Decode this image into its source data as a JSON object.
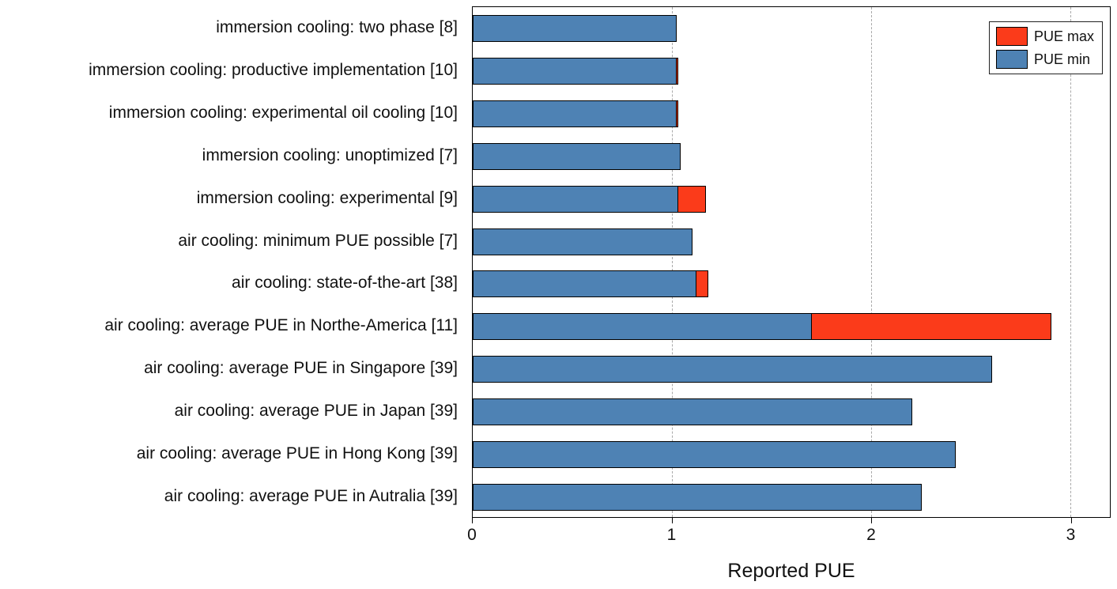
{
  "chart_data": {
    "type": "bar",
    "orientation": "horizontal",
    "title": "",
    "xlabel": "Reported PUE",
    "ylabel": "",
    "xlim": [
      0,
      3.2
    ],
    "xticks": [
      0,
      1,
      2,
      3
    ],
    "grid": "vertical-dashed",
    "legend_position": "upper right",
    "categories": [
      "immersion cooling: two phase [8]",
      "immersion cooling: productive implementation [10]",
      "immersion cooling: experimental oil cooling [10]",
      "immersion cooling: unoptimized [7]",
      "immersion cooling: experimental [9]",
      "air cooling: minimum PUE possible [7]",
      "air cooling: state-of-the-art [38]",
      "air cooling: average PUE in Northe-America [11]",
      "air cooling: average PUE in Singapore [39]",
      "air cooling: average PUE in Japan [39]",
      "air cooling: average PUE in Hong Kong [39]",
      "air cooling: average PUE in Autralia [39]"
    ],
    "series": [
      {
        "name": "PUE min",
        "color": "#4e82b4",
        "values": [
          1.02,
          1.02,
          1.02,
          1.04,
          1.03,
          1.1,
          1.12,
          1.7,
          2.6,
          2.2,
          2.42,
          2.25
        ]
      },
      {
        "name": "PUE max",
        "color": "#fb3b1a",
        "values": [
          1.02,
          1.03,
          1.03,
          1.04,
          1.17,
          1.1,
          1.18,
          2.9,
          2.6,
          2.2,
          2.42,
          2.25
        ]
      }
    ],
    "legend": [
      {
        "label": "PUE max",
        "color": "#fb3b1a"
      },
      {
        "label": "PUE min",
        "color": "#4e82b4"
      }
    ],
    "colors": {
      "grid": "#a9a9a9",
      "axis": "#000000",
      "text": "#111111"
    }
  }
}
